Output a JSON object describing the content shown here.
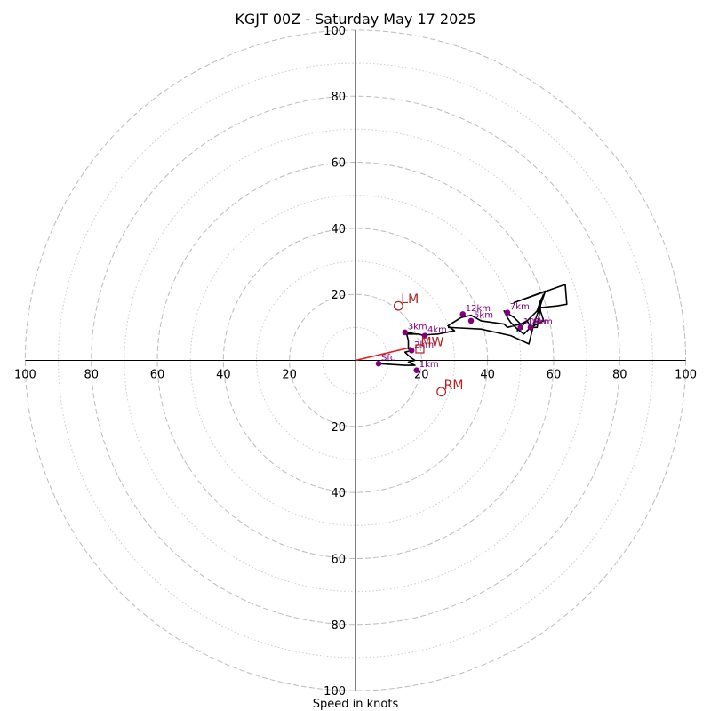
{
  "chart_data": {
    "type": "hodograph",
    "title": "KGJT 00Z - Saturday May 17 2025",
    "xlabel": "Speed in knots",
    "speed_range": [
      0,
      100
    ],
    "major_rings": [
      20,
      40,
      60,
      80,
      100
    ],
    "minor_rings": [
      10,
      30,
      50,
      70,
      90
    ],
    "tick_labels": [
      "20",
      "40",
      "60",
      "80",
      "100"
    ],
    "trace": [
      [
        7,
        -1
      ],
      [
        15,
        -1.5
      ],
      [
        18,
        -1.5
      ],
      [
        16,
        -0.5
      ],
      [
        18,
        0
      ],
      [
        17,
        0.7
      ],
      [
        16,
        1.5
      ],
      [
        15,
        2.5
      ],
      [
        17,
        3
      ],
      [
        16,
        3.5
      ],
      [
        16,
        4.5
      ],
      [
        16,
        6
      ],
      [
        15.5,
        8
      ],
      [
        18,
        8
      ],
      [
        16,
        8.5
      ],
      [
        15,
        8.5
      ],
      [
        17,
        8
      ],
      [
        19,
        8
      ],
      [
        21,
        7.5
      ],
      [
        22,
        7.8
      ],
      [
        25,
        8
      ],
      [
        30,
        9
      ],
      [
        28,
        10.5
      ],
      [
        32,
        13
      ],
      [
        35,
        13.7
      ],
      [
        38,
        12
      ],
      [
        45,
        11
      ],
      [
        46,
        10
      ],
      [
        50,
        11
      ],
      [
        49,
        9
      ],
      [
        52,
        12
      ],
      [
        55,
        15
      ],
      [
        56,
        18
      ],
      [
        57,
        20
      ],
      [
        56,
        18
      ],
      [
        56,
        15
      ],
      [
        57,
        12
      ],
      [
        53,
        10
      ],
      [
        51,
        8
      ],
      [
        49,
        9.5
      ],
      [
        47,
        11.5
      ],
      [
        46,
        13
      ],
      [
        45,
        15
      ],
      [
        48,
        13
      ],
      [
        50,
        11
      ],
      [
        52,
        12
      ],
      [
        53,
        10
      ],
      [
        55,
        10
      ],
      [
        56,
        16
      ],
      [
        61,
        16.5
      ],
      [
        64,
        17
      ],
      [
        63.5,
        23
      ],
      [
        48,
        17.5
      ],
      [
        57.5,
        21
      ],
      [
        54,
        11
      ],
      [
        52.5,
        5
      ],
      [
        47,
        7.5
      ],
      [
        38,
        9.5
      ],
      [
        28,
        10
      ]
    ],
    "height_labels": [
      {
        "label": "Sfc",
        "u": 7.0,
        "v": -1.0
      },
      {
        "label": "1km",
        "u": 18.5,
        "v": -3.0
      },
      {
        "label": "2km",
        "u": 17.0,
        "v": 3.0
      },
      {
        "label": "3km",
        "u": 15.0,
        "v": 8.5
      },
      {
        "label": "4km",
        "u": 21.0,
        "v": 7.5
      },
      {
        "label": "5km",
        "u": 35.0,
        "v": 12.0
      },
      {
        "label": "7km",
        "u": 46.0,
        "v": 14.5
      },
      {
        "label": "8km",
        "u": 53.0,
        "v": 10.0
      },
      {
        "label": "10km",
        "u": 50.0,
        "v": 10.0
      },
      {
        "label": "12km",
        "u": 32.5,
        "v": 14.0
      }
    ],
    "storm_motion": [
      {
        "label": "LM",
        "u": 13.0,
        "v": 16.5
      },
      {
        "label": "RM",
        "u": 26.0,
        "v": -9.5
      }
    ],
    "mean_wind": {
      "label": "MW",
      "u": 19.5,
      "v": 3.5
    },
    "shear_vector": {
      "from": [
        0,
        0
      ],
      "to": [
        17,
        4
      ]
    },
    "colors": {
      "trace": "#000000",
      "points": "#800080",
      "storm": "#b22222",
      "shear": "#e31a1c",
      "ring_major": "#bbbbbb",
      "ring_minor": "#cccccc"
    }
  }
}
